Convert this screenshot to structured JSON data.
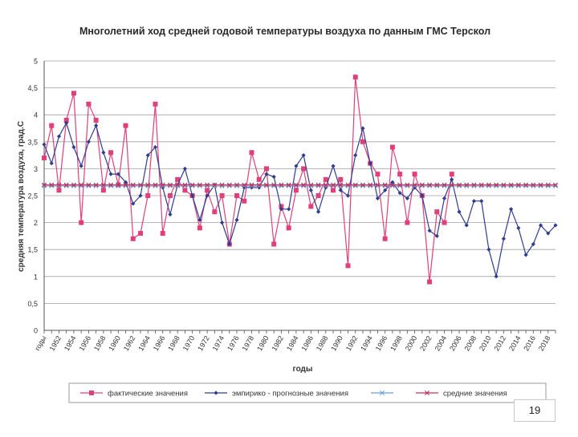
{
  "slide": {
    "page_number": "19"
  },
  "chart_data": {
    "type": "line",
    "title": "Многолетний ход средней годовой температуры воздуха по данным ГМС Терскол",
    "xlabel": "годы",
    "ylabel": "средняя температура воздуха, град.С",
    "ylim": [
      0,
      5
    ],
    "yticks": [
      0,
      0.5,
      1,
      1.5,
      2,
      2.5,
      3,
      3.5,
      4,
      4.5,
      5
    ],
    "ytick_labels": [
      "0",
      "0,5",
      "1",
      "1,5",
      "2",
      "2,5",
      "3",
      "3,5",
      "4",
      "4,5",
      "5"
    ],
    "x_first_label": "годы",
    "x_start_year": 1950,
    "x_end_year": 2019,
    "xtick_labels": [
      "1952",
      "1954",
      "1956",
      "1958",
      "1960",
      "1962",
      "1964",
      "1966",
      "1968",
      "1970",
      "1972",
      "1974",
      "1976",
      "1978",
      "1980",
      "1982",
      "1984",
      "1986",
      "1988",
      "1990",
      "1992",
      "1994",
      "1996",
      "1998",
      "2000",
      "2002",
      "2004",
      "2006",
      "2008",
      "2010",
      "2012",
      "2014",
      "2016",
      "2018"
    ],
    "grid": true,
    "legend_position": "bottom",
    "colors": {
      "actual": "#e0407a",
      "forecast": "#2e3d8f",
      "mean_blue": "#6aa0d8",
      "mean_red": "#c0305a",
      "grid": "#a0a0a0",
      "axis": "#555555"
    },
    "series": [
      {
        "name": "фактические значения",
        "start_year": 1950,
        "values": [
          3.2,
          3.8,
          2.6,
          3.9,
          4.4,
          2.0,
          4.2,
          3.9,
          2.6,
          3.3,
          2.7,
          3.8,
          1.7,
          1.8,
          2.5,
          4.2,
          1.8,
          2.5,
          2.8,
          2.6,
          2.5,
          1.9,
          2.6,
          2.2,
          2.5,
          1.6,
          2.5,
          2.4,
          3.3,
          2.8,
          3.0,
          1.6,
          2.3,
          1.9,
          2.6,
          3.0,
          2.3,
          2.5,
          2.8,
          2.6,
          2.8,
          1.2,
          4.7,
          3.5,
          3.1,
          2.9,
          1.7,
          3.4,
          2.9,
          2.0,
          2.9,
          2.5,
          0.9,
          2.2,
          2.0,
          2.9
        ]
      },
      {
        "name": "эмпирико - прогнозные значения",
        "start_year": 1950,
        "values": [
          3.45,
          3.1,
          3.6,
          3.85,
          3.4,
          3.05,
          3.5,
          3.8,
          3.3,
          2.9,
          2.9,
          2.75,
          2.35,
          2.5,
          3.25,
          3.4,
          2.65,
          2.15,
          2.7,
          3.0,
          2.5,
          2.05,
          2.5,
          2.7,
          2.0,
          1.6,
          2.05,
          2.65,
          2.65,
          2.65,
          2.9,
          2.85,
          2.25,
          2.25,
          3.05,
          3.25,
          2.6,
          2.2,
          2.65,
          3.05,
          2.6,
          2.5,
          3.25,
          3.75,
          3.1,
          2.45,
          2.6,
          2.75,
          2.55,
          2.45,
          2.65,
          2.5,
          1.85,
          1.75,
          2.45,
          2.8,
          2.2,
          1.95,
          2.4,
          2.4,
          1.5,
          1.0,
          1.7,
          2.25,
          1.9,
          1.4,
          1.6,
          1.95,
          1.8,
          1.95
        ]
      },
      {
        "name": "",
        "start_year": 1950,
        "constant": 2.68
      },
      {
        "name": "средние значения",
        "start_year": 1950,
        "constant": 2.7
      }
    ]
  }
}
